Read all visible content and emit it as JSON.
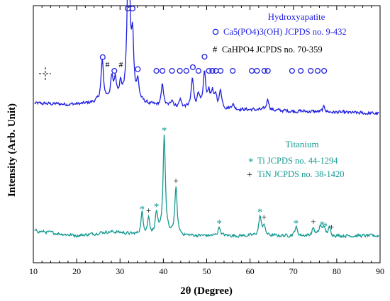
{
  "chart_data": {
    "type": "line",
    "title": "",
    "xlabel": "2θ (Degree)",
    "ylabel": "Intensity (Arb. Unit)",
    "xlim": [
      10,
      90
    ],
    "xticks": [
      10,
      20,
      30,
      40,
      50,
      60,
      70,
      80,
      90
    ],
    "y_ticks_shown": false,
    "grid": false,
    "series": [
      {
        "name": "Hydroxyapatite",
        "color": "#1f1fe0",
        "baseline": 0.62,
        "peaks": [
          {
            "x": 25.9,
            "h": 0.155
          },
          {
            "x": 28.1,
            "h": 0.075
          },
          {
            "x": 28.9,
            "h": 0.07
          },
          {
            "x": 30.1,
            "h": 0.05
          },
          {
            "x": 31.8,
            "h": 0.35
          },
          {
            "x": 32.2,
            "h": 0.26
          },
          {
            "x": 32.9,
            "h": 0.22
          },
          {
            "x": 34.1,
            "h": 0.07
          },
          {
            "x": 39.8,
            "h": 0.085
          },
          {
            "x": 42.0,
            "h": 0.03
          },
          {
            "x": 43.9,
            "h": 0.03
          },
          {
            "x": 46.7,
            "h": 0.11
          },
          {
            "x": 48.1,
            "h": 0.055
          },
          {
            "x": 49.5,
            "h": 0.135
          },
          {
            "x": 50.5,
            "h": 0.06
          },
          {
            "x": 51.3,
            "h": 0.06
          },
          {
            "x": 52.1,
            "h": 0.045
          },
          {
            "x": 53.2,
            "h": 0.07
          },
          {
            "x": 56.0,
            "h": 0.02
          },
          {
            "x": 64.1,
            "h": 0.045
          },
          {
            "x": 77.1,
            "h": 0.02
          }
        ]
      },
      {
        "name": "Titanium",
        "color": "#159a92",
        "baseline": 0.105,
        "peaks": [
          {
            "x": 35.1,
            "h": 0.085
          },
          {
            "x": 36.6,
            "h": 0.065
          },
          {
            "x": 38.4,
            "h": 0.085
          },
          {
            "x": 40.2,
            "h": 0.39
          },
          {
            "x": 42.9,
            "h": 0.185
          },
          {
            "x": 52.9,
            "h": 0.035
          },
          {
            "x": 62.3,
            "h": 0.075
          },
          {
            "x": 63.2,
            "h": 0.04
          },
          {
            "x": 70.6,
            "h": 0.035
          },
          {
            "x": 74.6,
            "h": 0.03
          },
          {
            "x": 76.2,
            "h": 0.035
          },
          {
            "x": 77.0,
            "h": 0.035
          },
          {
            "x": 78.3,
            "h": 0.03
          }
        ]
      }
    ],
    "markers": {
      "Hydroxyapatite": {
        "circle": [
          26.0,
          28.7,
          31.8,
          32.9,
          34.1,
          38.4,
          39.8,
          42.0,
          43.8,
          45.3,
          46.8,
          48.1,
          49.5,
          50.5,
          51.3,
          52.1,
          53.2,
          56.0,
          60.4,
          61.6,
          63.3,
          64.1,
          69.7,
          71.7,
          74.0,
          75.6,
          77.1
        ],
        "hash": [
          27.1,
          30.2
        ]
      },
      "Titanium": {
        "star": [
          35.1,
          38.4,
          40.2,
          52.9,
          62.3,
          70.6,
          76.6,
          77.3
        ],
        "plus": [
          36.6,
          42.9,
          63.2,
          74.6,
          78.8
        ]
      }
    },
    "legends": [
      {
        "title": "Hydroxyapatite",
        "entries": [
          {
            "symbol": "o",
            "label": "Ca5(PO4)3(OH) JCPDS no. 9-432"
          },
          {
            "symbol": "#",
            "label": "CaHPO4 JCPDS no. 70-359"
          }
        ]
      },
      {
        "title": "Titanium",
        "entries": [
          {
            "symbol": "*",
            "label": "Ti JCPDS no. 44-1294"
          },
          {
            "symbol": "+",
            "label": "TiN JCPDS no. 38-1420"
          }
        ]
      }
    ]
  }
}
